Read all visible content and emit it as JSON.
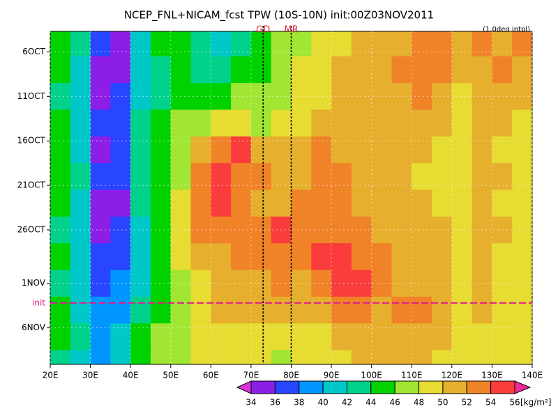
{
  "chart_data": {
    "type": "heatmap",
    "title": "NCEP_FNL+NICAM_fcst TPW (10S-10N) init:00Z03NOV2011",
    "subtitle": "(1.0deg intpl)",
    "x": [
      22.5,
      27.5,
      32.5,
      37.5,
      42.5,
      47.5,
      52.5,
      57.5,
      62.5,
      67.5,
      72.5,
      77.5,
      82.5,
      87.5,
      92.5,
      97.5,
      102.5,
      107.5,
      112.5,
      117.5,
      122.5,
      127.5,
      132.5,
      137.5
    ],
    "y": [
      5,
      8,
      11,
      14,
      17,
      20,
      23,
      26,
      29,
      32,
      35,
      38,
      41
    ],
    "z": [
      [
        44,
        42,
        36,
        35,
        40,
        44,
        44,
        42,
        40,
        42,
        44,
        46,
        46,
        48,
        48,
        50,
        50,
        50,
        52,
        52,
        50,
        52,
        50,
        52
      ],
      [
        44,
        40,
        35,
        35,
        40,
        42,
        44,
        42,
        42,
        44,
        44,
        46,
        48,
        48,
        50,
        50,
        50,
        52,
        52,
        52,
        50,
        50,
        52,
        50
      ],
      [
        42,
        40,
        35,
        36,
        40,
        42,
        44,
        44,
        44,
        46,
        46,
        46,
        48,
        48,
        50,
        50,
        50,
        50,
        52,
        50,
        48,
        50,
        50,
        50
      ],
      [
        44,
        40,
        36,
        36,
        42,
        44,
        46,
        46,
        48,
        48,
        46,
        48,
        48,
        50,
        50,
        50,
        50,
        50,
        50,
        50,
        48,
        50,
        50,
        48
      ],
      [
        44,
        40,
        35,
        36,
        42,
        44,
        46,
        50,
        52,
        54,
        50,
        50,
        50,
        52,
        50,
        50,
        50,
        50,
        50,
        48,
        48,
        50,
        48,
        48
      ],
      [
        44,
        42,
        36,
        36,
        42,
        44,
        46,
        52,
        54,
        52,
        52,
        50,
        50,
        52,
        52,
        50,
        50,
        50,
        48,
        48,
        48,
        50,
        50,
        48
      ],
      [
        44,
        40,
        35,
        35,
        42,
        44,
        48,
        52,
        54,
        52,
        50,
        50,
        52,
        52,
        52,
        50,
        50,
        50,
        50,
        48,
        48,
        50,
        48,
        48
      ],
      [
        42,
        40,
        35,
        36,
        40,
        44,
        48,
        52,
        52,
        52,
        52,
        54,
        52,
        52,
        52,
        52,
        50,
        50,
        50,
        50,
        48,
        50,
        50,
        48
      ],
      [
        44,
        40,
        36,
        36,
        40,
        44,
        48,
        50,
        50,
        52,
        52,
        52,
        52,
        54,
        54,
        52,
        52,
        50,
        50,
        50,
        48,
        50,
        48,
        48
      ],
      [
        42,
        40,
        36,
        38,
        40,
        44,
        46,
        48,
        50,
        50,
        50,
        52,
        50,
        52,
        54,
        54,
        52,
        50,
        50,
        50,
        48,
        50,
        48,
        48
      ],
      [
        44,
        40,
        38,
        38,
        42,
        44,
        46,
        48,
        50,
        50,
        50,
        50,
        50,
        50,
        52,
        52,
        50,
        52,
        52,
        50,
        48,
        50,
        48,
        48
      ],
      [
        44,
        42,
        38,
        40,
        44,
        46,
        46,
        48,
        48,
        48,
        48,
        48,
        48,
        48,
        50,
        50,
        50,
        50,
        50,
        50,
        48,
        48,
        48,
        48
      ],
      [
        42,
        40,
        38,
        40,
        44,
        46,
        46,
        48,
        48,
        48,
        48,
        46,
        48,
        48,
        48,
        50,
        50,
        50,
        50,
        48,
        48,
        48,
        48,
        48
      ]
    ],
    "xlim": [
      20,
      140
    ],
    "ylim": [
      3.7,
      41.1
    ],
    "y_inverted": true,
    "xticks": [
      {
        "value": 20,
        "label": "20E"
      },
      {
        "value": 30,
        "label": "30E"
      },
      {
        "value": 40,
        "label": "40E"
      },
      {
        "value": 50,
        "label": "50E"
      },
      {
        "value": 60,
        "label": "60E"
      },
      {
        "value": 70,
        "label": "70E"
      },
      {
        "value": 80,
        "label": "80E"
      },
      {
        "value": 90,
        "label": "90E"
      },
      {
        "value": 100,
        "label": "100E"
      },
      {
        "value": 110,
        "label": "110E"
      },
      {
        "value": 120,
        "label": "120E"
      },
      {
        "value": 130,
        "label": "130E"
      },
      {
        "value": 140,
        "label": "140E"
      }
    ],
    "yticks": [
      {
        "value": 6,
        "label": "6OCT"
      },
      {
        "value": 11,
        "label": "11OCT"
      },
      {
        "value": 16,
        "label": "16OCT"
      },
      {
        "value": 21,
        "label": "21OCT"
      },
      {
        "value": 26,
        "label": "26OCT"
      },
      {
        "value": 32,
        "label": "1NOV"
      },
      {
        "value": 37,
        "label": "6NOV"
      }
    ],
    "grid": true,
    "levels": [
      34,
      36,
      38,
      40,
      42,
      44,
      46,
      48,
      50,
      52,
      54,
      56
    ],
    "colors": [
      "#dc32dc",
      "#8c1ee6",
      "#2846ff",
      "#0096ff",
      "#00c8c8",
      "#00d28c",
      "#00d200",
      "#a0e632",
      "#e6dc32",
      "#e6af2d",
      "#f08228",
      "#fa3c3c",
      "#f0289a"
    ],
    "colorbar_unit": "[kg/m²]",
    "markers": [
      {
        "label": "GD",
        "value": 73
      },
      {
        "label": "MR",
        "value": 80
      }
    ],
    "init_line": {
      "label": "init",
      "value": 34.2
    }
  }
}
